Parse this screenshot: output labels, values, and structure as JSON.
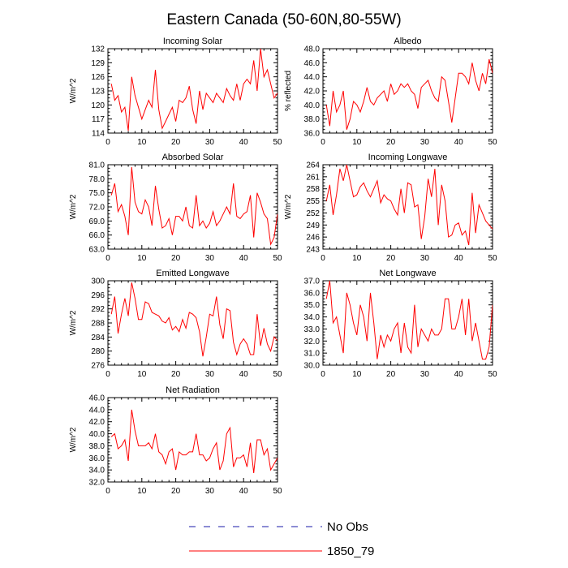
{
  "figure": {
    "title": "Eastern Canada (50-60N,80-55W)"
  },
  "colors": {
    "model_line": "#ff0000",
    "obs_line": "#1a1aaa",
    "axis": "#000000"
  },
  "legend": {
    "position": "bottom-center",
    "items": [
      {
        "label": "No Obs",
        "style": "dashed",
        "color": "#1a1aaa"
      },
      {
        "label": "1850_79",
        "style": "solid",
        "color": "#ff0000"
      }
    ]
  },
  "chart_data": [
    {
      "type": "line",
      "title": "Incoming Solar",
      "ylabel": "W/m^2",
      "xlabel": "",
      "xlim": [
        0,
        50
      ],
      "ylim": [
        114,
        132
      ],
      "xticks": [
        0,
        10,
        20,
        30,
        40,
        50
      ],
      "yticks": [
        114,
        117,
        120,
        123,
        126,
        129,
        132
      ],
      "ytick_labels": [
        "114",
        "117",
        "120",
        "123",
        "126",
        "129",
        "132"
      ],
      "series": [
        {
          "color": "#ff0000",
          "x": [
            1,
            2,
            3,
            4,
            5,
            6,
            7,
            8,
            9,
            10,
            11,
            12,
            13,
            14,
            15,
            16,
            17,
            18,
            19,
            20,
            21,
            22,
            23,
            24,
            25,
            26,
            27,
            28,
            29,
            30,
            31,
            32,
            33,
            34,
            35,
            36,
            37,
            38,
            39,
            40,
            41,
            42,
            43,
            44,
            45,
            46,
            47,
            48,
            49,
            50
          ],
          "values": [
            124.5,
            121.0,
            122.0,
            118.5,
            119.5,
            114.5,
            126.0,
            122.0,
            119.5,
            117.0,
            119.0,
            121.0,
            119.5,
            127.5,
            119.0,
            115.0,
            116.5,
            118.0,
            119.5,
            116.5,
            121.0,
            120.5,
            121.5,
            124.0,
            119.0,
            116.0,
            123.0,
            119.0,
            122.5,
            121.5,
            120.5,
            122.5,
            121.5,
            120.5,
            123.5,
            122.0,
            121.0,
            124.5,
            121.0,
            124.5,
            125.5,
            124.5,
            129.5,
            123.0,
            132.0,
            126.0,
            127.5,
            124.5,
            121.5,
            122.5
          ]
        }
      ]
    },
    {
      "type": "line",
      "title": "Albedo",
      "ylabel": "% reflected",
      "xlabel": "",
      "xlim": [
        0,
        50
      ],
      "ylim": [
        36,
        48
      ],
      "xticks": [
        0,
        10,
        20,
        30,
        40,
        50
      ],
      "yticks": [
        36,
        38,
        40,
        42,
        44,
        46,
        48
      ],
      "ytick_labels": [
        "36.0",
        "38.0",
        "40.0",
        "42.0",
        "44.0",
        "46.0",
        "48.0"
      ],
      "series": [
        {
          "color": "#ff0000",
          "x": [
            1,
            2,
            3,
            4,
            5,
            6,
            7,
            8,
            9,
            10,
            11,
            12,
            13,
            14,
            15,
            16,
            17,
            18,
            19,
            20,
            21,
            22,
            23,
            24,
            25,
            26,
            27,
            28,
            29,
            30,
            31,
            32,
            33,
            34,
            35,
            36,
            37,
            38,
            39,
            40,
            41,
            42,
            43,
            44,
            45,
            46,
            47,
            48,
            49,
            50
          ],
          "values": [
            40.0,
            37.0,
            42.0,
            39.0,
            40.0,
            42.0,
            36.5,
            38.0,
            40.5,
            40.0,
            39.0,
            40.5,
            42.5,
            40.5,
            40.0,
            41.0,
            41.5,
            42.0,
            40.5,
            43.0,
            41.5,
            42.0,
            43.0,
            42.5,
            43.0,
            42.0,
            41.5,
            39.5,
            42.5,
            43.0,
            43.5,
            42.0,
            41.0,
            40.5,
            44.0,
            43.5,
            40.5,
            37.5,
            41.0,
            44.5,
            44.5,
            44.0,
            43.0,
            46.0,
            43.5,
            42.0,
            44.5,
            43.0,
            46.5,
            44.5
          ]
        }
      ]
    },
    {
      "type": "line",
      "title": "Absorbed Solar",
      "ylabel": "W/m^2",
      "xlabel": "",
      "xlim": [
        0,
        50
      ],
      "ylim": [
        63,
        81
      ],
      "xticks": [
        0,
        10,
        20,
        30,
        40,
        50
      ],
      "yticks": [
        63,
        66,
        69,
        72,
        75,
        78,
        81
      ],
      "ytick_labels": [
        "63.0",
        "66.0",
        "69.0",
        "72.0",
        "75.0",
        "78.0",
        "81.0"
      ],
      "series": [
        {
          "color": "#ff0000",
          "x": [
            1,
            2,
            3,
            4,
            5,
            6,
            7,
            8,
            9,
            10,
            11,
            12,
            13,
            14,
            15,
            16,
            17,
            18,
            19,
            20,
            21,
            22,
            23,
            24,
            25,
            26,
            27,
            28,
            29,
            30,
            31,
            32,
            33,
            34,
            35,
            36,
            37,
            38,
            39,
            40,
            41,
            42,
            43,
            44,
            45,
            46,
            47,
            48,
            49,
            50
          ],
          "values": [
            74.5,
            77.0,
            71.0,
            72.5,
            70.0,
            66.0,
            80.5,
            73.0,
            71.0,
            70.5,
            73.5,
            72.0,
            68.0,
            76.5,
            71.5,
            67.5,
            68.0,
            69.5,
            66.0,
            70.0,
            70.0,
            69.0,
            72.0,
            68.0,
            67.5,
            74.5,
            68.0,
            69.0,
            67.5,
            68.5,
            71.0,
            68.0,
            69.0,
            70.5,
            72.0,
            70.5,
            77.0,
            70.0,
            69.5,
            70.5,
            71.0,
            74.5,
            65.5,
            75.0,
            73.0,
            70.5,
            69.5,
            64.0,
            65.5,
            70.5
          ]
        }
      ]
    },
    {
      "type": "line",
      "title": "Incoming Longwave",
      "ylabel": "W/m^2",
      "xlabel": "",
      "xlim": [
        0,
        50
      ],
      "ylim": [
        243,
        264
      ],
      "xticks": [
        0,
        10,
        20,
        30,
        40,
        50
      ],
      "yticks": [
        243,
        246,
        249,
        252,
        255,
        258,
        261,
        264
      ],
      "ytick_labels": [
        "243",
        "246",
        "249",
        "252",
        "255",
        "258",
        "261",
        "264"
      ],
      "series": [
        {
          "color": "#ff0000",
          "x": [
            1,
            2,
            3,
            4,
            5,
            6,
            7,
            8,
            9,
            10,
            11,
            12,
            13,
            14,
            15,
            16,
            17,
            18,
            19,
            20,
            21,
            22,
            23,
            24,
            25,
            26,
            27,
            28,
            29,
            30,
            31,
            32,
            33,
            34,
            35,
            36,
            37,
            38,
            39,
            40,
            41,
            42,
            43,
            44,
            45,
            46,
            47,
            48,
            49,
            50
          ],
          "values": [
            255.0,
            259.0,
            251.5,
            256.5,
            263.0,
            260.0,
            264.0,
            260.0,
            256.0,
            256.5,
            258.5,
            259.5,
            257.5,
            256.0,
            258.0,
            260.0,
            254.5,
            256.5,
            255.5,
            255.0,
            253.0,
            251.5,
            258.0,
            252.0,
            259.5,
            259.0,
            253.5,
            254.0,
            245.5,
            251.0,
            260.5,
            256.0,
            263.0,
            249.0,
            259.0,
            255.0,
            246.0,
            246.5,
            249.0,
            249.5,
            246.5,
            247.5,
            244.0,
            257.0,
            247.0,
            254.0,
            252.0,
            250.0,
            249.0,
            248.0
          ]
        }
      ]
    },
    {
      "type": "line",
      "title": "Emitted Longwave",
      "ylabel": "W/m^2",
      "xlabel": "",
      "xlim": [
        0,
        50
      ],
      "ylim": [
        276,
        300
      ],
      "xticks": [
        0,
        10,
        20,
        30,
        40,
        50
      ],
      "yticks": [
        276,
        280,
        284,
        288,
        292,
        296,
        300
      ],
      "ytick_labels": [
        "276",
        "280",
        "284",
        "288",
        "292",
        "296",
        "300"
      ],
      "series": [
        {
          "color": "#ff0000",
          "x": [
            1,
            2,
            3,
            4,
            5,
            6,
            7,
            8,
            9,
            10,
            11,
            12,
            13,
            14,
            15,
            16,
            17,
            18,
            19,
            20,
            21,
            22,
            23,
            24,
            25,
            26,
            27,
            28,
            29,
            30,
            31,
            32,
            33,
            34,
            35,
            36,
            37,
            38,
            39,
            40,
            41,
            42,
            43,
            44,
            45,
            46,
            47,
            48,
            49,
            50
          ],
          "values": [
            290.5,
            295.5,
            285.0,
            290.5,
            295.0,
            290.0,
            299.5,
            295.0,
            289.0,
            289.0,
            294.0,
            293.5,
            291.0,
            290.5,
            290.0,
            288.5,
            288.0,
            289.5,
            286.0,
            287.0,
            285.5,
            289.0,
            286.5,
            291.0,
            290.5,
            289.5,
            285.5,
            278.5,
            284.0,
            290.5,
            290.0,
            295.5,
            287.5,
            283.5,
            292.0,
            291.5,
            282.5,
            279.0,
            282.0,
            283.5,
            282.0,
            279.0,
            279.0,
            290.5,
            281.5,
            286.5,
            282.0,
            280.0,
            284.0,
            283.0
          ]
        }
      ]
    },
    {
      "type": "line",
      "title": "Net Longwave",
      "ylabel": "",
      "xlabel": "",
      "xlim": [
        0,
        50
      ],
      "ylim": [
        30,
        37
      ],
      "xticks": [
        0,
        10,
        20,
        30,
        40,
        50
      ],
      "yticks": [
        30,
        31,
        32,
        33,
        34,
        35,
        36,
        37
      ],
      "ytick_labels": [
        "30.0",
        "31.0",
        "32.0",
        "33.0",
        "34.0",
        "35.0",
        "36.0",
        "37.0"
      ],
      "series": [
        {
          "color": "#ff0000",
          "x": [
            1,
            2,
            3,
            4,
            5,
            6,
            7,
            8,
            9,
            10,
            11,
            12,
            13,
            14,
            15,
            16,
            17,
            18,
            19,
            20,
            21,
            22,
            23,
            24,
            25,
            26,
            27,
            28,
            29,
            30,
            31,
            32,
            33,
            34,
            35,
            36,
            37,
            38,
            39,
            40,
            41,
            42,
            43,
            44,
            45,
            46,
            47,
            48,
            49,
            50
          ],
          "values": [
            35.5,
            37.0,
            33.5,
            34.0,
            32.5,
            31.0,
            36.0,
            35.0,
            33.5,
            32.5,
            35.0,
            34.0,
            32.0,
            36.0,
            33.5,
            30.5,
            32.5,
            31.5,
            32.5,
            32.0,
            33.0,
            33.5,
            31.0,
            33.5,
            31.5,
            31.0,
            35.0,
            31.5,
            33.0,
            32.5,
            32.0,
            33.0,
            32.5,
            32.5,
            33.0,
            35.5,
            35.5,
            33.0,
            33.0,
            34.0,
            35.5,
            32.5,
            35.5,
            32.0,
            33.5,
            32.0,
            30.5,
            30.5,
            31.5,
            35.0
          ]
        }
      ]
    },
    {
      "type": "line",
      "title": "Net Radiation",
      "ylabel": "W/m^2",
      "xlabel": "",
      "xlim": [
        0,
        50
      ],
      "ylim": [
        32,
        46
      ],
      "xticks": [
        0,
        10,
        20,
        30,
        40,
        50
      ],
      "yticks": [
        32,
        34,
        36,
        38,
        40,
        42,
        44,
        46
      ],
      "ytick_labels": [
        "32.0",
        "34.0",
        "36.0",
        "38.0",
        "40.0",
        "42.0",
        "44.0",
        "46.0"
      ],
      "series": [
        {
          "color": "#ff0000",
          "x": [
            1,
            2,
            3,
            4,
            5,
            6,
            7,
            8,
            9,
            10,
            11,
            12,
            13,
            14,
            15,
            16,
            17,
            18,
            19,
            20,
            21,
            22,
            23,
            24,
            25,
            26,
            27,
            28,
            29,
            30,
            31,
            32,
            33,
            34,
            35,
            36,
            37,
            38,
            39,
            40,
            41,
            42,
            43,
            44,
            45,
            46,
            47,
            48,
            49,
            50
          ],
          "values": [
            39.5,
            40.0,
            37.5,
            38.0,
            39.0,
            35.5,
            44.0,
            40.5,
            38.0,
            38.0,
            38.0,
            38.5,
            37.5,
            40.0,
            37.0,
            36.5,
            35.0,
            37.0,
            37.5,
            34.0,
            37.0,
            36.5,
            36.5,
            37.0,
            37.0,
            40.0,
            36.5,
            36.5,
            35.5,
            36.0,
            37.5,
            38.5,
            34.0,
            35.5,
            40.0,
            41.0,
            34.5,
            36.0,
            36.0,
            36.5,
            34.5,
            38.5,
            33.5,
            39.0,
            39.0,
            36.5,
            37.5,
            34.0,
            35.0,
            36.0
          ]
        }
      ]
    }
  ]
}
